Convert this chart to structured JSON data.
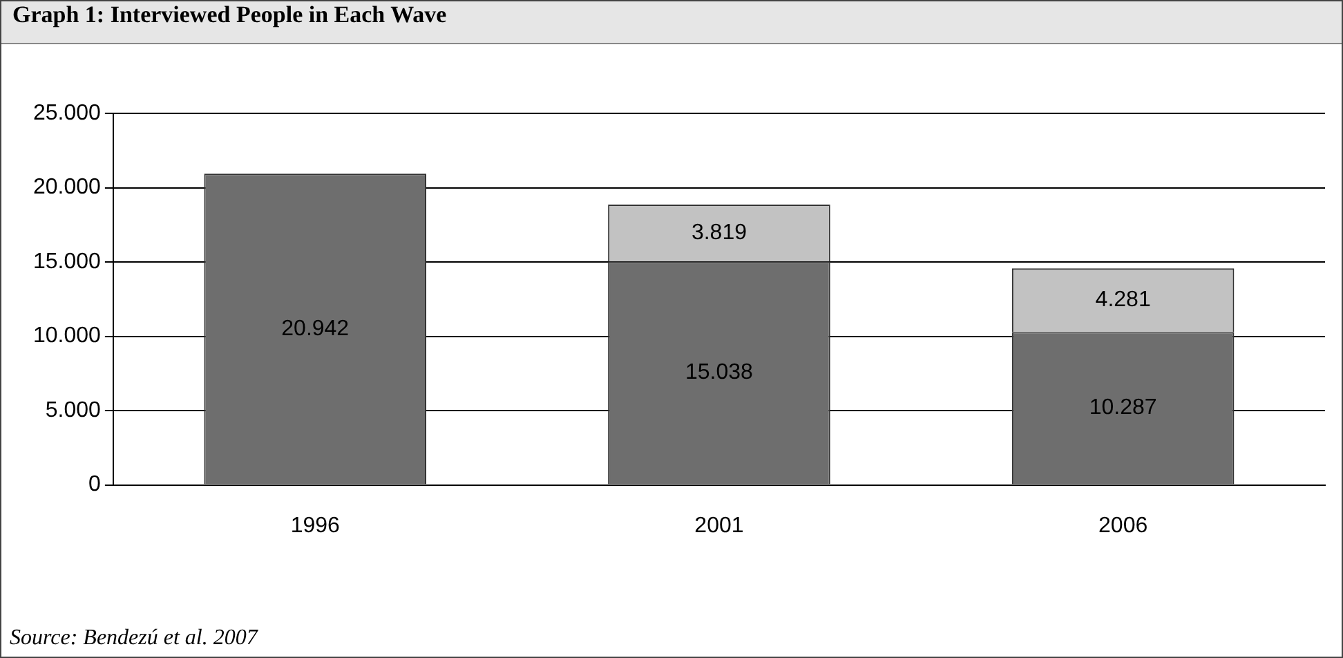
{
  "chart_data": {
    "type": "bar",
    "title": "Graph 1: Interviewed People in Each Wave",
    "categories": [
      "1996",
      "2001",
      "2006"
    ],
    "stacked": true,
    "series": [
      {
        "color": "#6e6e6e",
        "values": [
          20942,
          15038,
          10287
        ],
        "value_labels": [
          "20.942",
          "15.038",
          "10.287"
        ]
      },
      {
        "color": "#c2c2c2",
        "values": [
          null,
          3819,
          4281
        ],
        "value_labels": [
          null,
          "3.819",
          "4.281"
        ]
      }
    ],
    "ylim": [
      0,
      25000
    ],
    "yticks": [
      {
        "value": 0,
        "label": "0"
      },
      {
        "value": 5000,
        "label": "5.000"
      },
      {
        "value": 10000,
        "label": "10.000"
      },
      {
        "value": 15000,
        "label": "15.000"
      },
      {
        "value": 20000,
        "label": "20.000"
      },
      {
        "value": 25000,
        "label": "25.000"
      }
    ],
    "grid": "y",
    "legend": false,
    "annotations": [
      "Source: Bendezú et al. 2007"
    ]
  }
}
